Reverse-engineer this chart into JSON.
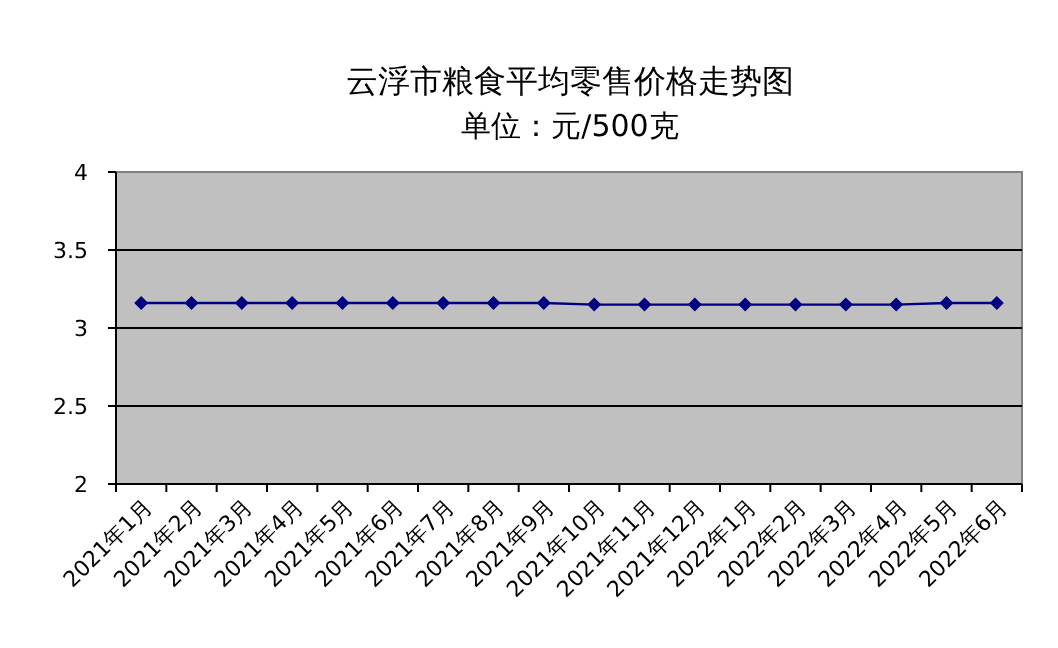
{
  "chart_data": {
    "type": "line",
    "title": "云浮市粮食平均零售价格走势图",
    "subtitle": "单位：元/500克",
    "categories": [
      "2021年1月",
      "2021年2月",
      "2021年3月",
      "2021年4月",
      "2021年5月",
      "2021年6月",
      "2021年7月",
      "2021年8月",
      "2021年9月",
      "2021年10月",
      "2021年11月",
      "2021年12月",
      "2022年1月",
      "2022年2月",
      "2022年3月",
      "2022年4月",
      "2022年5月",
      "2022年6月"
    ],
    "series": [
      {
        "color": "#000080",
        "values": [
          3.16,
          3.16,
          3.16,
          3.16,
          3.16,
          3.16,
          3.16,
          3.16,
          3.16,
          3.15,
          3.15,
          3.15,
          3.15,
          3.15,
          3.15,
          3.15,
          3.16,
          3.16
        ]
      }
    ],
    "ylim": [
      2,
      4
    ],
    "yticks": [
      2,
      2.5,
      3,
      3.5,
      4
    ],
    "grid": "y",
    "marker": "diamond",
    "line_style": "solid"
  }
}
